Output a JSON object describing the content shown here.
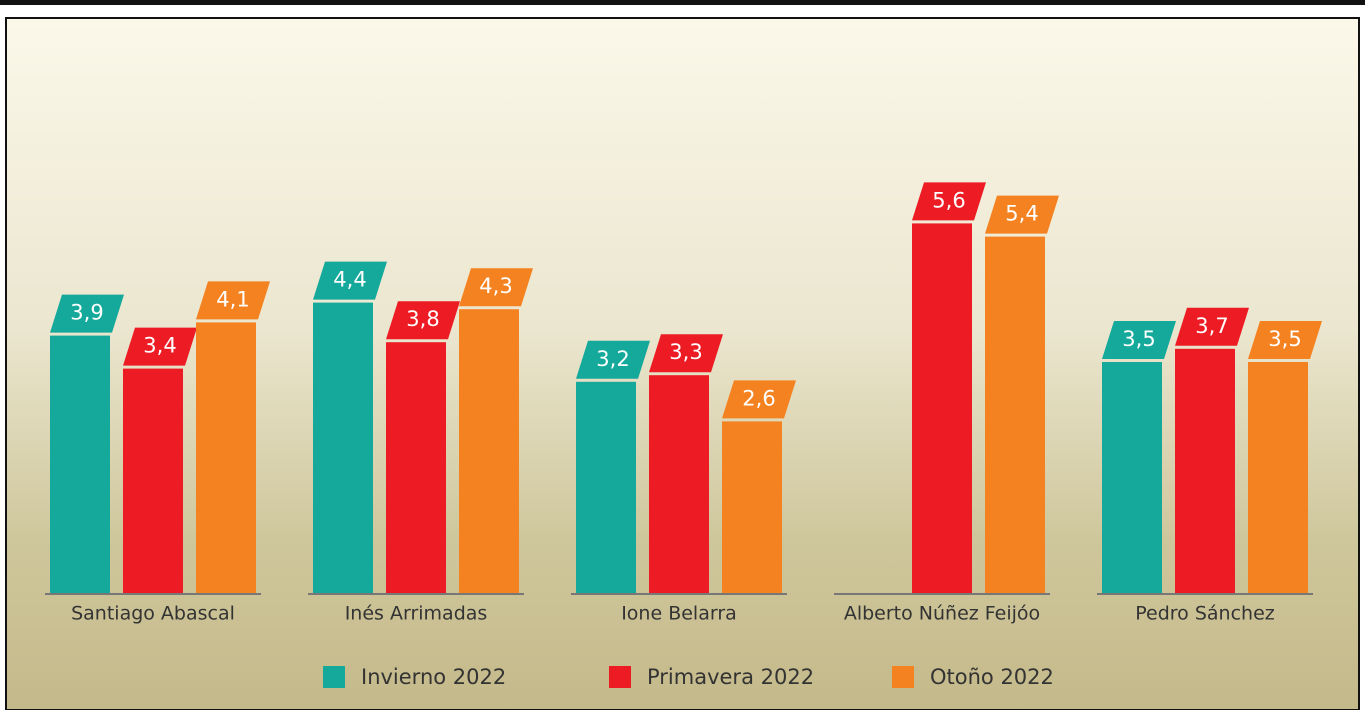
{
  "chart_data": {
    "type": "bar",
    "categories": [
      "Santiago Abascal",
      "Inés Arrimadas",
      "Ione Belarra",
      "Alberto Núñez Feijóo",
      "Pedro Sánchez"
    ],
    "series": [
      {
        "name": "Invierno 2022",
        "color": "#14a99a",
        "values": [
          3.9,
          4.4,
          3.2,
          null,
          3.5
        ],
        "value_labels": [
          "3,9",
          "4,4",
          "3,2",
          null,
          "3,5"
        ]
      },
      {
        "name": "Primavera 2022",
        "color": "#ed1c24",
        "values": [
          3.4,
          3.8,
          3.3,
          5.6,
          3.7
        ],
        "value_labels": [
          "3,4",
          "3,8",
          "3,3",
          "5,6",
          "3,7"
        ]
      },
      {
        "name": "Otoño 2022",
        "color": "#f58220",
        "values": [
          4.1,
          4.3,
          2.6,
          5.4,
          3.5
        ],
        "value_labels": [
          "4,1",
          "4,3",
          "2,6",
          "5,4",
          "3,5"
        ]
      }
    ]
  }
}
